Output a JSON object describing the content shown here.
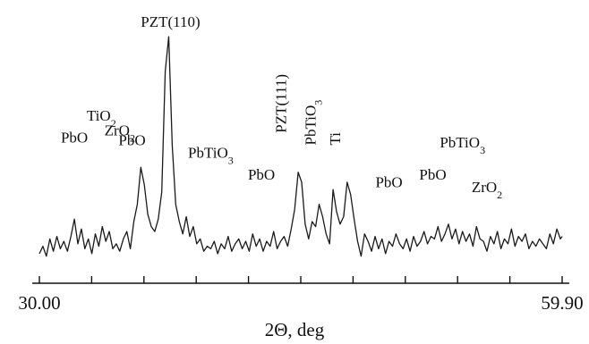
{
  "chart_data": {
    "type": "line",
    "xlabel": "2Θ, deg",
    "x_tick_labels": [
      {
        "x": 30.0,
        "label": "30.00"
      },
      {
        "x": 59.9,
        "label": "59.90"
      }
    ],
    "x_ticks": [
      30.0,
      32.99,
      35.98,
      38.97,
      41.96,
      44.95,
      47.94,
      50.93,
      53.92,
      56.91,
      59.9
    ],
    "xlim": [
      30.0,
      59.9
    ],
    "ylim": [
      0,
      100
    ],
    "y_axis_shown": false,
    "grid": false,
    "line_color": "#1a1a1a",
    "series": [
      {
        "x": [
          30.0,
          30.2,
          30.4,
          30.6,
          30.8,
          31.0,
          31.2,
          31.4,
          31.6,
          31.8,
          32.0,
          32.2,
          32.4,
          32.6,
          32.8,
          33.0,
          33.2,
          33.4,
          33.6,
          33.8,
          34.0,
          34.2,
          34.4,
          34.6,
          34.8,
          35.0,
          35.2,
          35.4,
          35.6,
          35.8,
          36.0,
          36.2,
          36.4,
          36.6,
          36.8,
          37.0,
          37.2,
          37.4,
          37.6,
          37.8,
          38.0,
          38.2,
          38.4,
          38.6,
          38.8,
          39.0,
          39.2,
          39.4,
          39.6,
          39.8,
          40.0,
          40.2,
          40.4,
          40.6,
          40.8,
          41.0,
          41.2,
          41.4,
          41.6,
          41.8,
          42.0,
          42.2,
          42.4,
          42.6,
          42.8,
          43.0,
          43.2,
          43.4,
          43.6,
          43.8,
          44.0,
          44.2,
          44.4,
          44.6,
          44.8,
          45.0,
          45.2,
          45.4,
          45.6,
          45.8,
          46.0,
          46.2,
          46.4,
          46.6,
          46.8,
          47.0,
          47.2,
          47.4,
          47.6,
          47.8,
          48.0,
          48.2,
          48.4,
          48.6,
          48.8,
          49.0,
          49.2,
          49.4,
          49.6,
          49.8,
          50.0,
          50.2,
          50.4,
          50.6,
          50.8,
          51.0,
          51.2,
          51.4,
          51.6,
          51.8,
          52.0,
          52.2,
          52.4,
          52.6,
          52.8,
          53.0,
          53.2,
          53.4,
          53.6,
          53.8,
          54.0,
          54.2,
          54.4,
          54.6,
          54.8,
          55.0,
          55.2,
          55.4,
          55.6,
          55.8,
          56.0,
          56.2,
          56.4,
          56.6,
          56.8,
          57.0,
          57.2,
          57.4,
          57.6,
          57.8,
          58.0,
          58.2,
          58.4,
          58.6,
          58.8,
          59.0,
          59.2,
          59.4,
          59.6,
          59.8,
          59.9
        ],
        "y": [
          8,
          11,
          7,
          14,
          9,
          15,
          10,
          13,
          9,
          15,
          22,
          12,
          18,
          10,
          14,
          8,
          16,
          11,
          19,
          13,
          17,
          10,
          12,
          9,
          14,
          17,
          10,
          21,
          28,
          43,
          36,
          24,
          19,
          17,
          22,
          33,
          82,
          96,
          52,
          28,
          21,
          16,
          23,
          15,
          19,
          12,
          14,
          9,
          11,
          10,
          13,
          8,
          12,
          10,
          15,
          9,
          12,
          14,
          10,
          13,
          9,
          16,
          11,
          14,
          9,
          13,
          11,
          17,
          10,
          13,
          15,
          11,
          18,
          26,
          41,
          37,
          20,
          14,
          21,
          19,
          28,
          23,
          16,
          12,
          34,
          25,
          20,
          23,
          37,
          32,
          22,
          13,
          7,
          16,
          13,
          9,
          15,
          10,
          14,
          8,
          13,
          11,
          16,
          12,
          10,
          14,
          9,
          15,
          11,
          13,
          17,
          12,
          15,
          14,
          19,
          13,
          16,
          20,
          14,
          18,
          12,
          17,
          13,
          16,
          11,
          19,
          14,
          13,
          9,
          15,
          12,
          17,
          10,
          14,
          12,
          18,
          11,
          15,
          13,
          16,
          10,
          13,
          11,
          14,
          12,
          10,
          16,
          12,
          18,
          14,
          15
        ]
      }
    ],
    "annotations": [
      {
        "x": 35.3,
        "y": 52,
        "text": "PbO"
      },
      {
        "x": 33.55,
        "y": 62,
        "text": "TiO",
        "sub": "2"
      },
      {
        "x": 34.6,
        "y": 56,
        "text": "ZrO",
        "sub": "2"
      },
      {
        "x": 32.0,
        "y": 53,
        "text": "PbO"
      },
      {
        "x": 37.5,
        "y": 100,
        "text": "PZT(110)"
      },
      {
        "x": 39.8,
        "y": 47,
        "text": "PbTiO",
        "sub": "3"
      },
      {
        "x": 42.7,
        "y": 38,
        "text": "PbO"
      },
      {
        "x": 44.1,
        "y": 57,
        "text": "PZT(111)",
        "vertical": true
      },
      {
        "x": 45.8,
        "y": 52,
        "text": "PbTiO",
        "sub": "3",
        "vertical": true
      },
      {
        "x": 47.2,
        "y": 52,
        "text": "Ti",
        "vertical": true
      },
      {
        "x": 50.0,
        "y": 35,
        "text": "PbO"
      },
      {
        "x": 52.5,
        "y": 38,
        "text": "PbO"
      },
      {
        "x": 54.2,
        "y": 51,
        "text": "PbTiO",
        "sub": "3"
      },
      {
        "x": 55.6,
        "y": 33,
        "text": "ZrO",
        "sub": "2"
      }
    ]
  }
}
